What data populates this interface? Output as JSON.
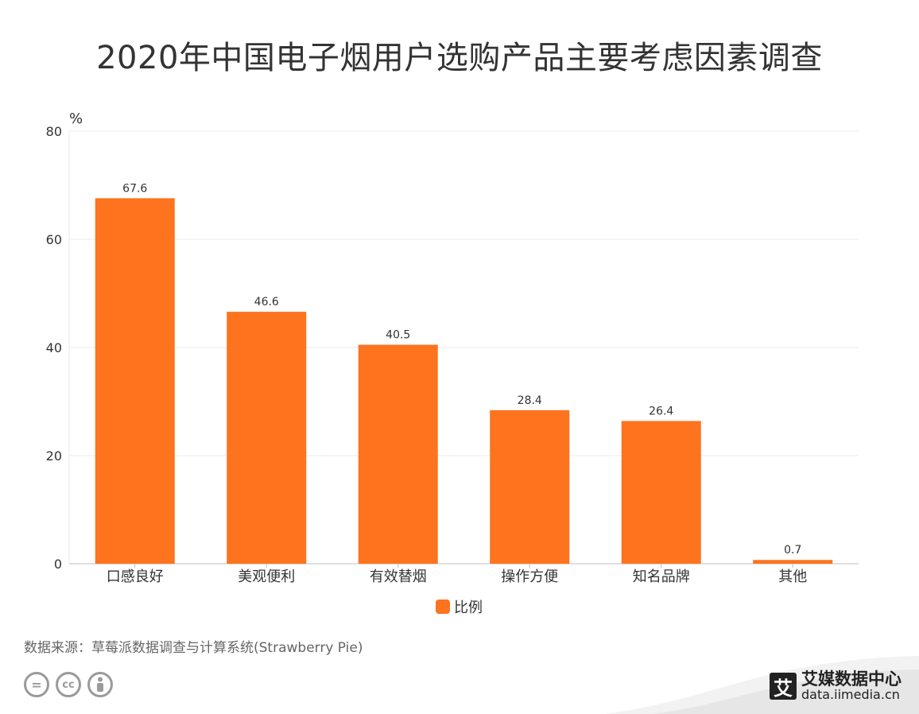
{
  "title": "2020年中国电子烟用户选购产品主要考虑因素调查",
  "source": "数据来源：草莓派数据调查与计算系统(Strawberry Pie)",
  "brand": {
    "name": "艾媒数据中心",
    "url": "data.iimedia.cn",
    "logo": "艾"
  },
  "icons": [
    "equals-icon",
    "cc-icon",
    "person-icon"
  ],
  "colors": {
    "bar": "#FD731E",
    "grid": "#EBEBEB",
    "axis": "#BFBFBF",
    "text": "#333333"
  },
  "chart_data": {
    "type": "bar",
    "title": "2020年中国电子烟用户选购产品主要考虑因素调查",
    "ylabel": "%",
    "xlabel": "",
    "categories": [
      "口感良好",
      "美观便利",
      "有效替烟",
      "操作方便",
      "知名品牌",
      "其他"
    ],
    "series": [
      {
        "name": "比例",
        "values": [
          67.6,
          46.6,
          40.5,
          28.4,
          26.4,
          0.7
        ]
      }
    ],
    "ylim": [
      0,
      80
    ],
    "yticks": [
      0,
      20,
      40,
      60,
      80
    ],
    "grid": true,
    "legend": "bottom-center",
    "data_labels": true
  }
}
